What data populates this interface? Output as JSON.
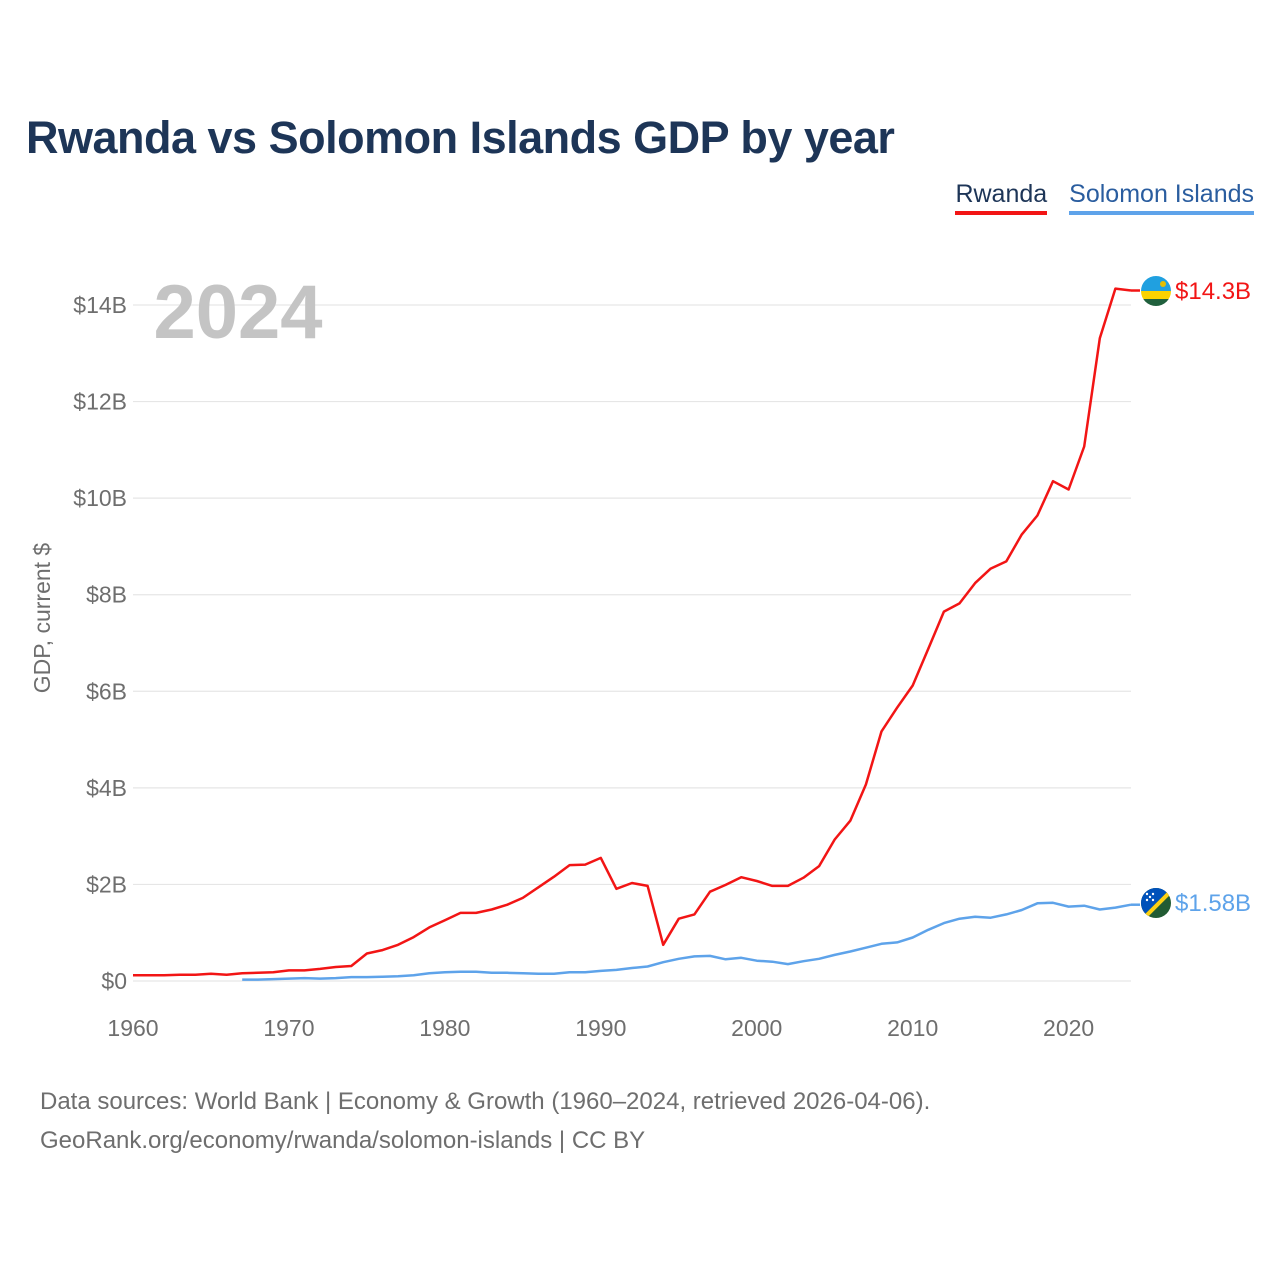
{
  "title": "Rwanda vs Solomon Islands GDP by year",
  "legend": {
    "rwanda": "Rwanda",
    "solomon": "Solomon Islands"
  },
  "year_label": "2024",
  "source": {
    "line1": "Data sources: World Bank | Economy & Growth (1960–2024, retrieved 2026-04-06).",
    "line2": "GeoRank.org/economy/rwanda/solomon-islands | CC BY"
  },
  "colors": {
    "rwanda": "#f21515",
    "solomon": "#5ea3ea",
    "title": "#1d3557",
    "grid": "#e6e6e6",
    "year": "#c4c4c4",
    "axis_text": "#6e6e6e"
  },
  "chart_data": {
    "type": "line",
    "title": "Rwanda vs Solomon Islands GDP by year",
    "xlabel": "",
    "ylabel": "GDP, current $",
    "xlim": [
      1960,
      2024
    ],
    "ylim": [
      0,
      15
    ],
    "x_ticks": [
      1960,
      1970,
      1980,
      1990,
      2000,
      2010,
      2020
    ],
    "x_tick_labels": [
      "1960",
      "1970",
      "1980",
      "1990",
      "2000",
      "2010",
      "2020"
    ],
    "y_ticks": [
      0,
      2,
      4,
      6,
      8,
      10,
      12,
      14
    ],
    "y_tick_labels": [
      "$0",
      "$2B",
      "$4B",
      "$6B",
      "$8B",
      "$10B",
      "$12B",
      "$14B"
    ],
    "units": "billions USD",
    "series": [
      {
        "name": "Rwanda",
        "end_label": "$14.3B",
        "x": [
          1960,
          1961,
          1962,
          1963,
          1964,
          1965,
          1966,
          1967,
          1968,
          1969,
          1970,
          1971,
          1972,
          1973,
          1974,
          1975,
          1976,
          1977,
          1978,
          1979,
          1980,
          1981,
          1982,
          1983,
          1984,
          1985,
          1986,
          1987,
          1988,
          1989,
          1990,
          1991,
          1992,
          1993,
          1994,
          1995,
          1996,
          1997,
          1998,
          1999,
          2000,
          2001,
          2002,
          2003,
          2004,
          2005,
          2006,
          2007,
          2008,
          2009,
          2010,
          2011,
          2012,
          2013,
          2014,
          2015,
          2016,
          2017,
          2018,
          2019,
          2020,
          2021,
          2022,
          2023,
          2024
        ],
        "values": [
          0.12,
          0.12,
          0.12,
          0.13,
          0.13,
          0.15,
          0.13,
          0.16,
          0.17,
          0.18,
          0.22,
          0.22,
          0.25,
          0.29,
          0.31,
          0.57,
          0.64,
          0.75,
          0.91,
          1.11,
          1.26,
          1.41,
          1.41,
          1.48,
          1.58,
          1.72,
          1.94,
          2.16,
          2.4,
          2.41,
          2.55,
          1.91,
          2.03,
          1.97,
          0.75,
          1.29,
          1.38,
          1.85,
          1.99,
          2.15,
          2.07,
          1.97,
          1.97,
          2.14,
          2.38,
          2.93,
          3.32,
          4.07,
          5.17,
          5.66,
          6.12,
          6.88,
          7.65,
          7.82,
          8.24,
          8.54,
          8.69,
          9.25,
          9.64,
          10.35,
          10.18,
          11.07,
          13.31,
          14.34,
          14.3
        ]
      },
      {
        "name": "Solomon Islands",
        "end_label": "$1.58B",
        "x": [
          1967,
          1968,
          1969,
          1970,
          1971,
          1972,
          1973,
          1974,
          1975,
          1976,
          1977,
          1978,
          1979,
          1980,
          1981,
          1982,
          1983,
          1984,
          1985,
          1986,
          1987,
          1988,
          1989,
          1990,
          1991,
          1992,
          1993,
          1994,
          1995,
          1996,
          1997,
          1998,
          1999,
          2000,
          2001,
          2002,
          2003,
          2004,
          2005,
          2006,
          2007,
          2008,
          2009,
          2010,
          2011,
          2012,
          2013,
          2014,
          2015,
          2016,
          2017,
          2018,
          2019,
          2020,
          2021,
          2022,
          2023,
          2024
        ],
        "values": [
          0.03,
          0.03,
          0.04,
          0.05,
          0.06,
          0.05,
          0.06,
          0.08,
          0.08,
          0.09,
          0.1,
          0.12,
          0.16,
          0.18,
          0.19,
          0.19,
          0.17,
          0.17,
          0.16,
          0.15,
          0.15,
          0.18,
          0.18,
          0.21,
          0.23,
          0.27,
          0.3,
          0.39,
          0.46,
          0.51,
          0.52,
          0.45,
          0.48,
          0.42,
          0.4,
          0.35,
          0.41,
          0.46,
          0.54,
          0.61,
          0.69,
          0.77,
          0.8,
          0.9,
          1.06,
          1.2,
          1.29,
          1.33,
          1.31,
          1.38,
          1.47,
          1.61,
          1.62,
          1.54,
          1.56,
          1.48,
          1.52,
          1.58
        ]
      }
    ]
  }
}
